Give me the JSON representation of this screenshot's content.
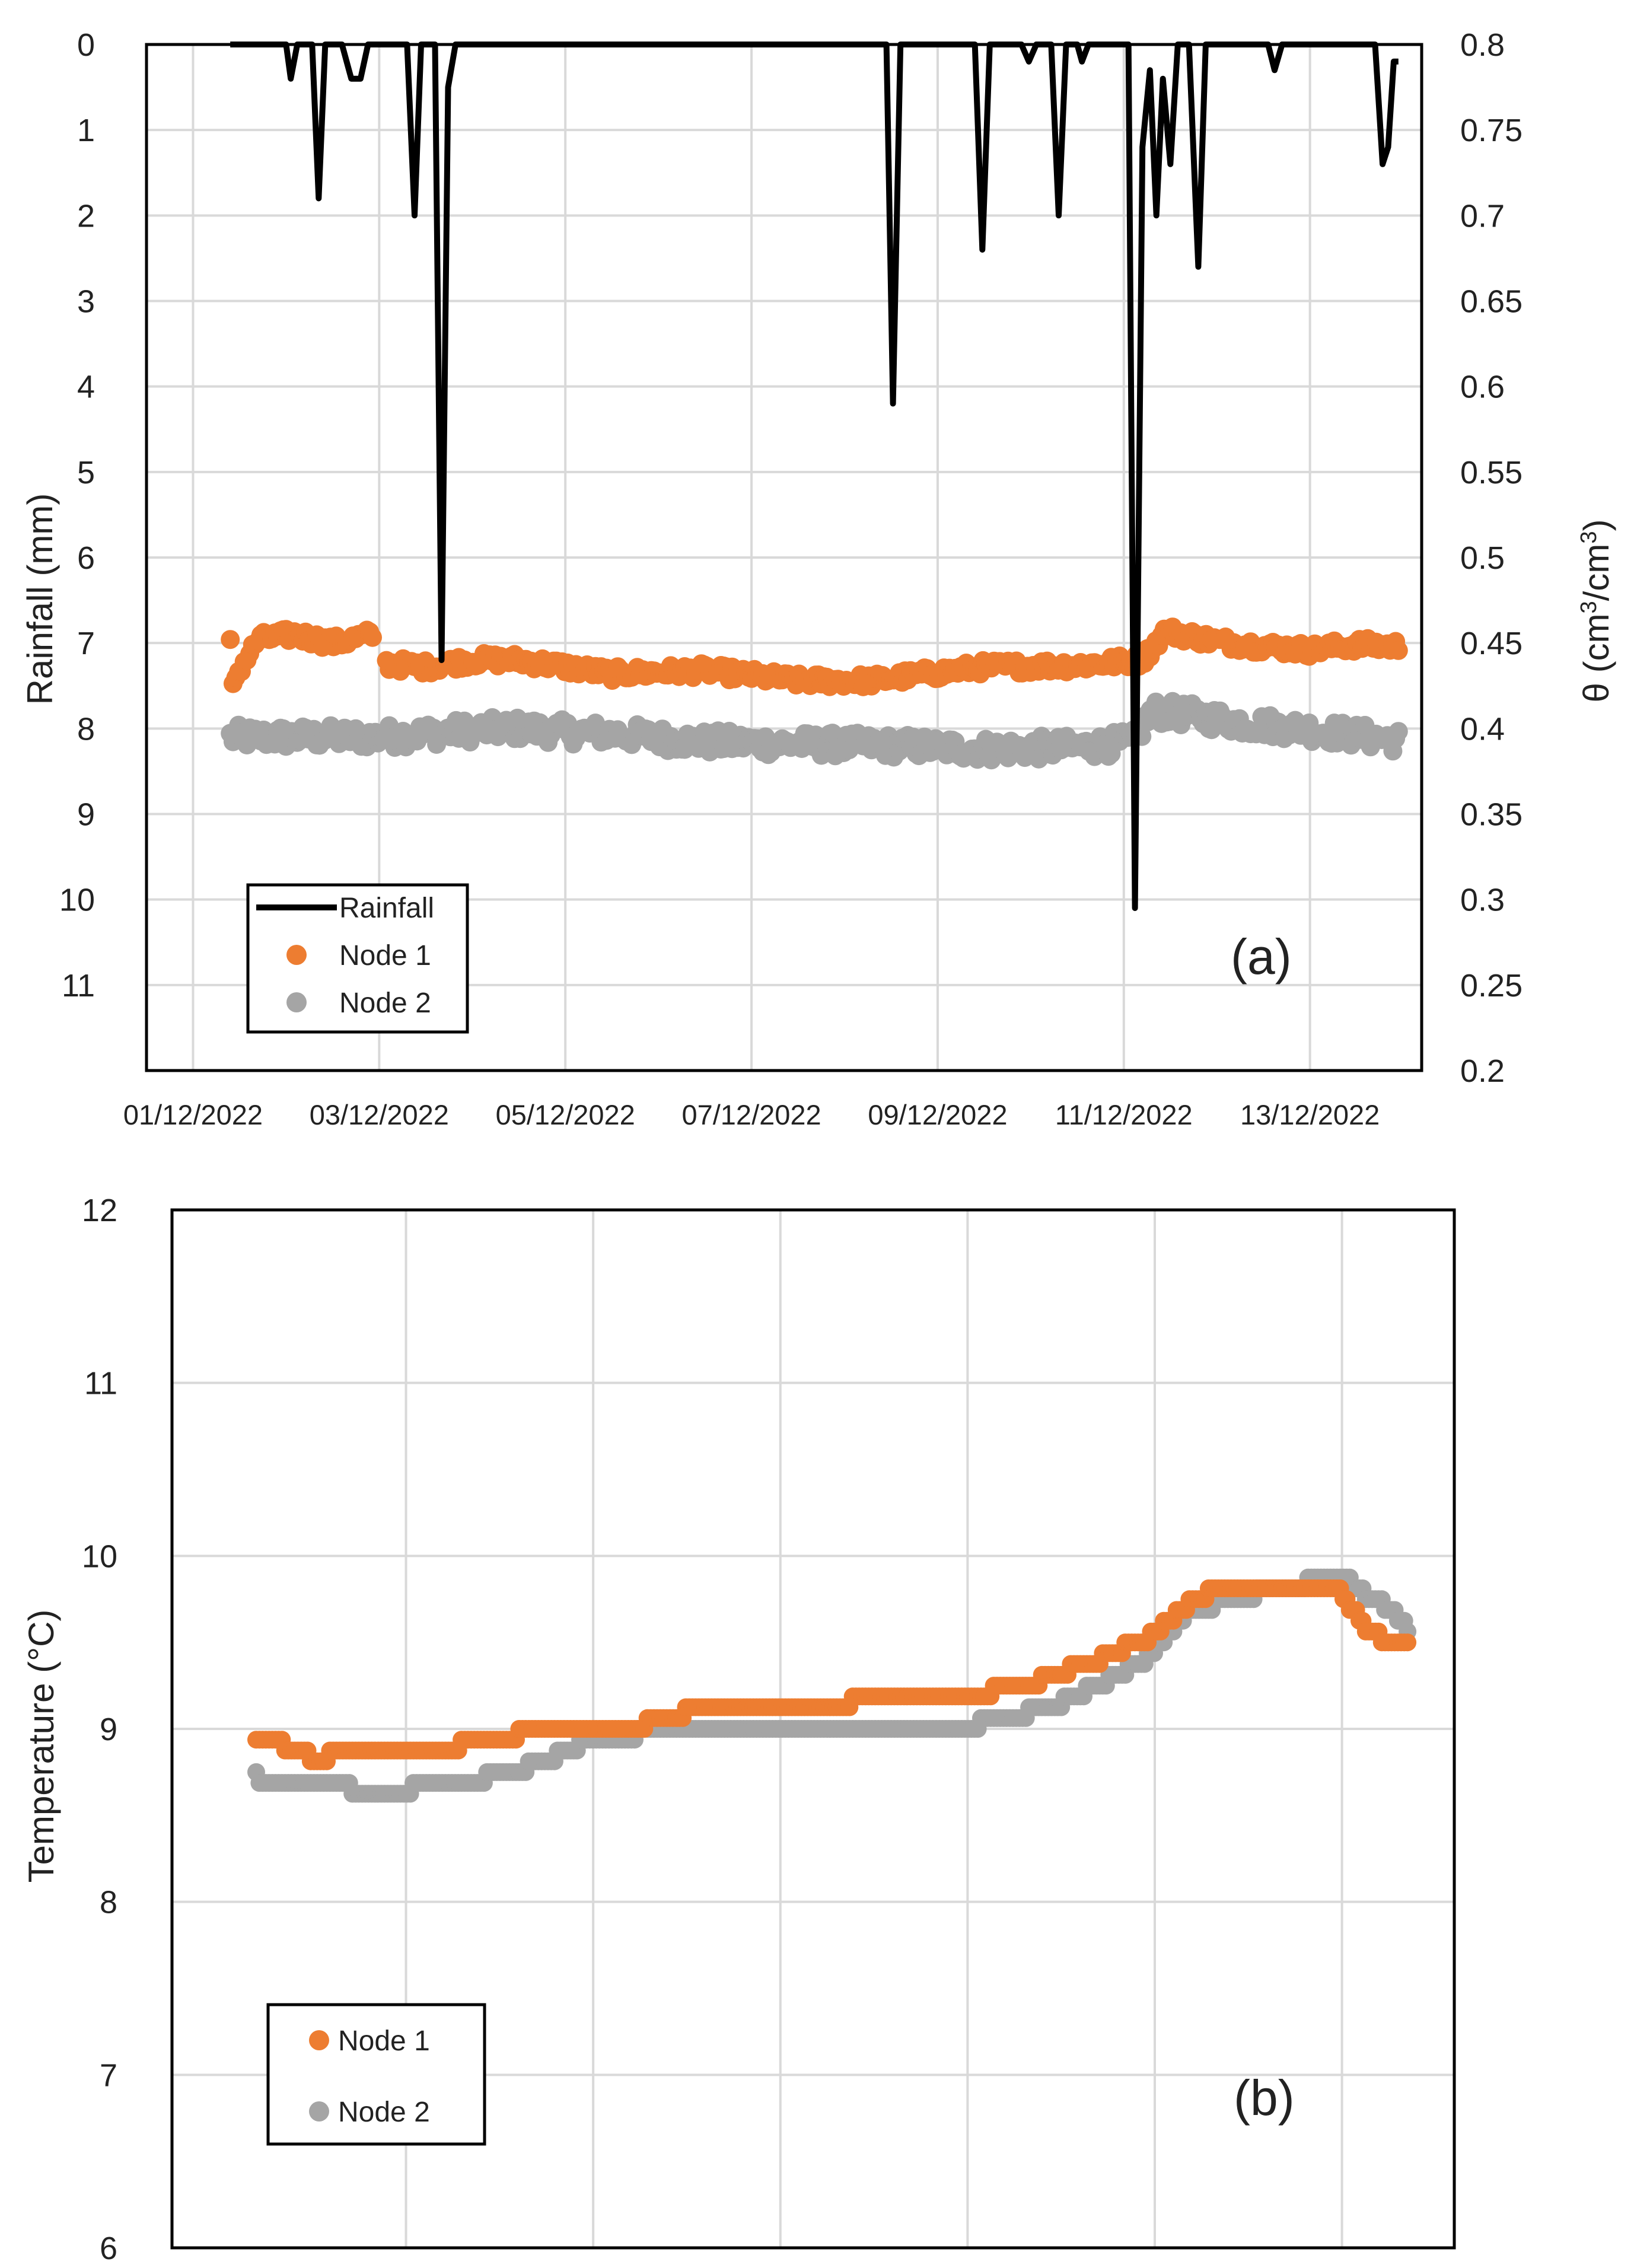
{
  "colors": {
    "rainfall": "#000000",
    "node1": "#ED7D31",
    "node2": "#A5A5A5",
    "grid": "#d9d9d9"
  },
  "chart_data": [
    {
      "type": "line+scatter",
      "panel_label": "(a)",
      "ylabel_left": "Rainfall (mm)",
      "ylabel_right_prefix": "θ (cm",
      "ylabel_right_sup": "3",
      "ylabel_right_mid": "/cm",
      "ylabel_right_suffix": ")",
      "ylim_left": [
        0,
        12
      ],
      "ylim_right": [
        0.2,
        0.8
      ],
      "left_inverted": true,
      "yticks_left": [
        "0",
        "1",
        "2",
        "3",
        "4",
        "5",
        "6",
        "7",
        "8",
        "9",
        "10",
        "11"
      ],
      "yticks_right": [
        "0.8",
        "0.75",
        "0.7",
        "0.65",
        "0.6",
        "0.55",
        "0.5",
        "0.45",
        "0.4",
        "0.35",
        "0.3",
        "0.25",
        "0.2"
      ],
      "x_range_days": [
        0,
        13.7
      ],
      "x_tick_days": [
        0.5,
        2.5,
        4.5,
        6.5,
        8.5,
        10.5,
        12.5
      ],
      "x_tick_labels": [
        "01/12/2022",
        "03/12/2022",
        "05/12/2022",
        "07/12/2022",
        "09/12/2022",
        "11/12/2022",
        "13/12/2022"
      ],
      "legend": {
        "rainfall": "Rainfall",
        "node1": "Node 1",
        "node2": "Node 2",
        "position": "bottom-left"
      },
      "rainfall_mm": [
        [
          0.9,
          0
        ],
        [
          1.5,
          0
        ],
        [
          1.55,
          0.4
        ],
        [
          1.62,
          0
        ],
        [
          1.78,
          0
        ],
        [
          1.85,
          1.8
        ],
        [
          1.92,
          0
        ],
        [
          2.1,
          0
        ],
        [
          2.2,
          0.4
        ],
        [
          2.3,
          0.4
        ],
        [
          2.38,
          0
        ],
        [
          2.8,
          0
        ],
        [
          2.88,
          2
        ],
        [
          2.95,
          0
        ],
        [
          3.1,
          0
        ],
        [
          3.17,
          7.2
        ],
        [
          3.24,
          0.5
        ],
        [
          3.32,
          0
        ],
        [
          7.95,
          0
        ],
        [
          8.02,
          4.2
        ],
        [
          8.1,
          0
        ],
        [
          8.9,
          0
        ],
        [
          8.98,
          2.4
        ],
        [
          9.06,
          0
        ],
        [
          9.4,
          0
        ],
        [
          9.48,
          0.2
        ],
        [
          9.56,
          0
        ],
        [
          9.72,
          0
        ],
        [
          9.8,
          2
        ],
        [
          9.88,
          0
        ],
        [
          10.0,
          0
        ],
        [
          10.05,
          0.2
        ],
        [
          10.12,
          0
        ],
        [
          10.55,
          0
        ],
        [
          10.62,
          10.1
        ],
        [
          10.7,
          1.2
        ],
        [
          10.78,
          0.3
        ],
        [
          10.85,
          2
        ],
        [
          10.92,
          0.4
        ],
        [
          11.0,
          1.4
        ],
        [
          11.08,
          0
        ],
        [
          11.2,
          0
        ],
        [
          11.3,
          2.6
        ],
        [
          11.38,
          0
        ],
        [
          12.05,
          0
        ],
        [
          12.12,
          0.3
        ],
        [
          12.2,
          0
        ],
        [
          13.2,
          0
        ],
        [
          13.28,
          1.4
        ],
        [
          13.34,
          1.2
        ],
        [
          13.4,
          0.2
        ],
        [
          13.45,
          0.2
        ]
      ],
      "node1_theta": {
        "x_range": [
          0.9,
          13.45
        ],
        "gap_before": 2.55,
        "points": [
          [
            0.9,
            0.45
          ],
          [
            0.92,
            0.42
          ],
          [
            0.95,
            0.43
          ],
          [
            1.2,
            0.452
          ],
          [
            1.6,
            0.455
          ],
          [
            2.0,
            0.45
          ],
          [
            2.45,
            0.455
          ],
          [
            2.55,
            0.438
          ],
          [
            3.0,
            0.436
          ],
          [
            3.5,
            0.44
          ],
          [
            4.0,
            0.44
          ],
          [
            5.0,
            0.432
          ],
          [
            6.0,
            0.434
          ],
          [
            7.0,
            0.428
          ],
          [
            7.8,
            0.428
          ],
          [
            9.0,
            0.436
          ],
          [
            10.0,
            0.437
          ],
          [
            10.7,
            0.44
          ],
          [
            10.95,
            0.457
          ],
          [
            11.5,
            0.451
          ],
          [
            12.0,
            0.448
          ],
          [
            12.5,
            0.446
          ],
          [
            13.0,
            0.449
          ],
          [
            13.45,
            0.448
          ]
        ]
      },
      "node2_theta": {
        "x_range": [
          0.9,
          13.45
        ],
        "gap_before": null,
        "points": [
          [
            0.9,
            0.395
          ],
          [
            1.5,
            0.395
          ],
          [
            2.0,
            0.395
          ],
          [
            2.5,
            0.395
          ],
          [
            3.0,
            0.397
          ],
          [
            3.5,
            0.399
          ],
          [
            4.0,
            0.4
          ],
          [
            4.5,
            0.398
          ],
          [
            5.0,
            0.397
          ],
          [
            6.0,
            0.392
          ],
          [
            7.0,
            0.391
          ],
          [
            8.0,
            0.39
          ],
          [
            9.0,
            0.388
          ],
          [
            10.0,
            0.389
          ],
          [
            10.6,
            0.392
          ],
          [
            10.8,
            0.41
          ],
          [
            11.2,
            0.408
          ],
          [
            11.8,
            0.403
          ],
          [
            12.4,
            0.4
          ],
          [
            13.0,
            0.396
          ],
          [
            13.45,
            0.393
          ]
        ]
      }
    },
    {
      "type": "scatter",
      "panel_label": "(b)",
      "ylabel": "Temperature (°C)",
      "ylim": [
        6,
        12
      ],
      "yticks": [
        "6",
        "7",
        "8",
        "9",
        "10",
        "11",
        "12"
      ],
      "x_range_days": [
        0,
        13.7
      ],
      "x_grid_days": [
        2.5,
        4.5,
        6.5,
        8.5,
        10.5,
        12.5
      ],
      "legend": {
        "node1": "Node 1",
        "node2": "Node 2",
        "position": "bottom-left"
      },
      "node1_temp": [
        [
          0.9,
          8.95
        ],
        [
          1.1,
          8.93
        ],
        [
          1.4,
          8.85
        ],
        [
          1.6,
          8.83
        ],
        [
          1.8,
          8.88
        ],
        [
          2.5,
          8.88
        ],
        [
          3.0,
          8.9
        ],
        [
          3.5,
          8.95
        ],
        [
          4.0,
          9.0
        ],
        [
          5.0,
          9.02
        ],
        [
          5.5,
          9.1
        ],
        [
          6.0,
          9.13
        ],
        [
          7.0,
          9.14
        ],
        [
          8.0,
          9.2
        ],
        [
          8.8,
          9.22
        ],
        [
          9.2,
          9.27
        ],
        [
          9.8,
          9.38
        ],
        [
          10.4,
          9.52
        ],
        [
          10.8,
          9.7
        ],
        [
          11.1,
          9.8
        ],
        [
          11.6,
          9.82
        ],
        [
          12.2,
          9.83
        ],
        [
          12.5,
          9.78
        ],
        [
          12.8,
          9.55
        ],
        [
          13.0,
          9.52
        ],
        [
          13.2,
          9.5
        ]
      ],
      "node2_temp": [
        [
          0.9,
          8.72
        ],
        [
          1.5,
          8.68
        ],
        [
          2.0,
          8.65
        ],
        [
          2.5,
          8.65
        ],
        [
          3.0,
          8.69
        ],
        [
          3.5,
          8.73
        ],
        [
          4.0,
          8.82
        ],
        [
          4.5,
          8.95
        ],
        [
          5.0,
          8.97
        ],
        [
          6.0,
          8.97
        ],
        [
          7.0,
          8.98
        ],
        [
          8.0,
          9.0
        ],
        [
          8.5,
          9.02
        ],
        [
          9.0,
          9.07
        ],
        [
          9.5,
          9.15
        ],
        [
          10.0,
          9.28
        ],
        [
          10.4,
          9.4
        ],
        [
          10.8,
          9.65
        ],
        [
          11.3,
          9.75
        ],
        [
          12.0,
          9.83
        ],
        [
          12.3,
          9.86
        ],
        [
          12.5,
          9.88
        ],
        [
          12.75,
          9.78
        ],
        [
          13.0,
          9.7
        ],
        [
          13.2,
          9.58
        ]
      ]
    }
  ]
}
